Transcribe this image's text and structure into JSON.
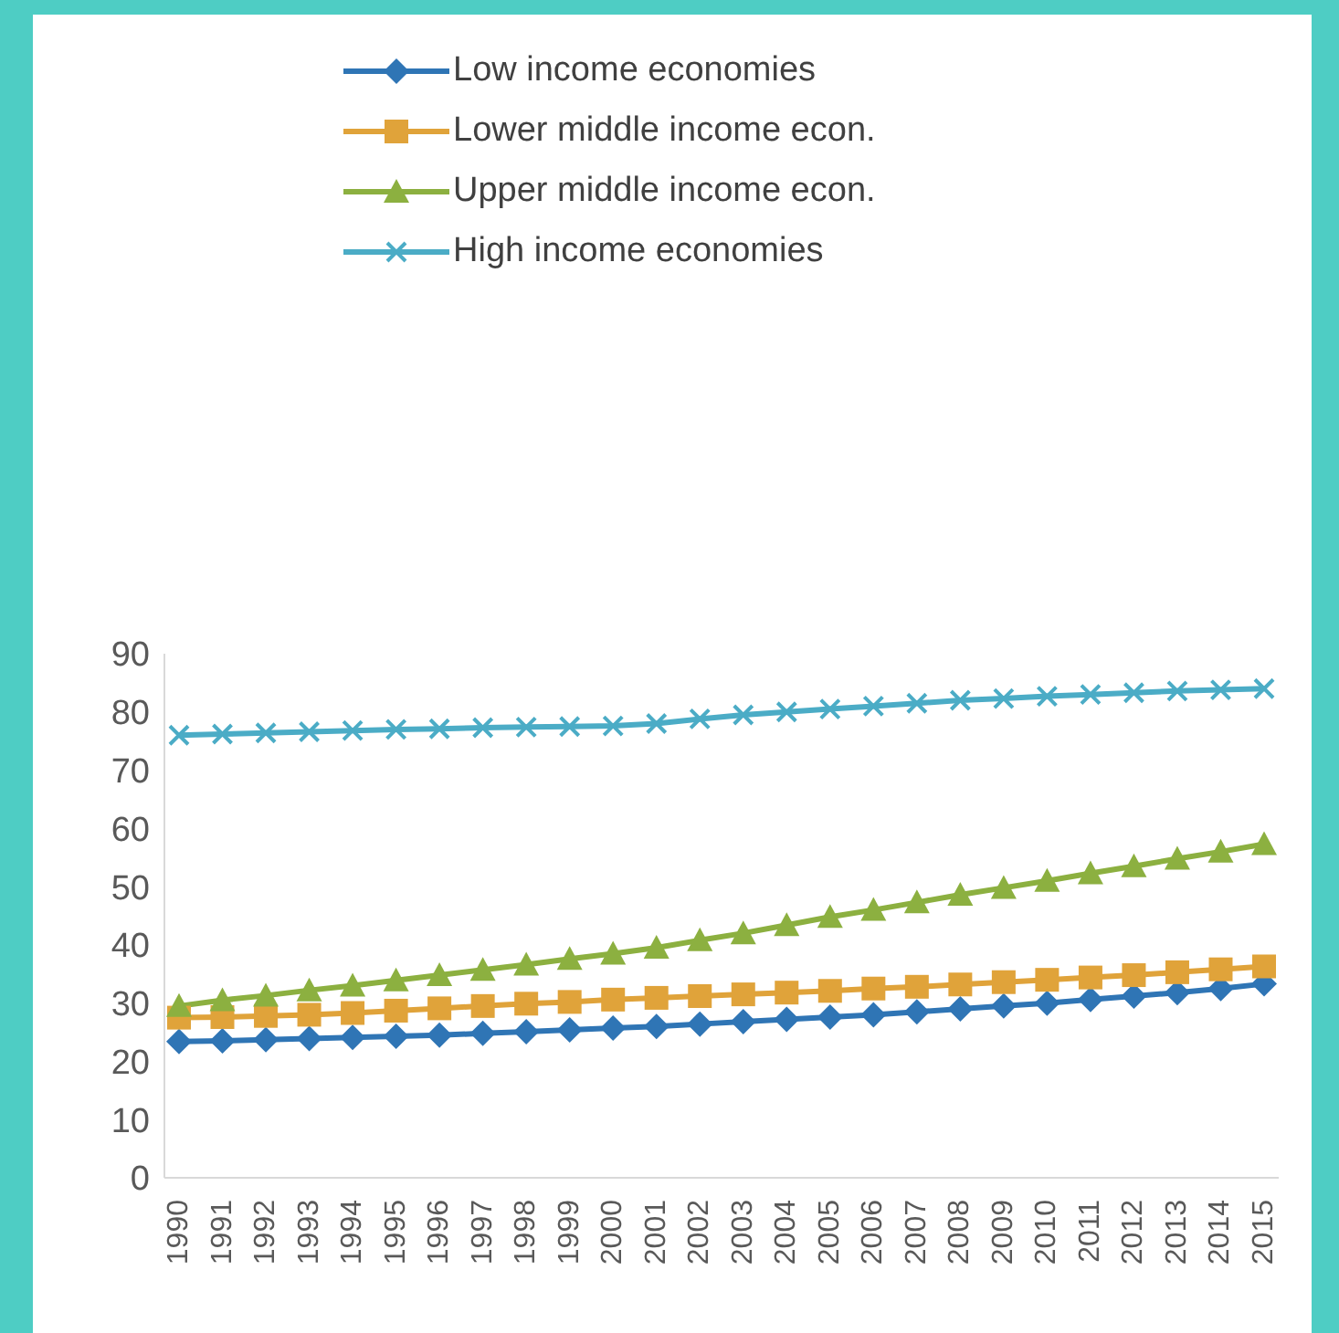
{
  "chart_data": {
    "type": "line",
    "categories": [
      "1990",
      "1991",
      "1992",
      "1993",
      "1994",
      "1995",
      "1996",
      "1997",
      "1998",
      "1999",
      "2000",
      "2001",
      "2002",
      "2003",
      "2004",
      "2005",
      "2006",
      "2007",
      "2008",
      "2009",
      "2010",
      "2011",
      "2012",
      "2013",
      "2014",
      "2015"
    ],
    "series": [
      {
        "name": "Low income economies",
        "color": "#2f75b5",
        "marker": "diamond",
        "values": [
          23.4,
          23.5,
          23.7,
          23.9,
          24.1,
          24.3,
          24.5,
          24.8,
          25.1,
          25.4,
          25.7,
          26,
          26.4,
          26.8,
          27.2,
          27.6,
          28,
          28.5,
          29,
          29.5,
          30,
          30.6,
          31.2,
          31.8,
          32.5,
          33.3
        ]
      },
      {
        "name": "Lower middle income econ.",
        "color": "#e0a33a",
        "marker": "square",
        "values": [
          27.5,
          27.6,
          27.8,
          28,
          28.3,
          28.7,
          29.1,
          29.5,
          29.9,
          30.2,
          30.6,
          30.9,
          31.2,
          31.5,
          31.8,
          32.1,
          32.5,
          32.8,
          33.2,
          33.6,
          34,
          34.4,
          34.8,
          35.3,
          35.8,
          36.3
        ]
      },
      {
        "name": "Upper middle income econ.",
        "color": "#8cb040",
        "marker": "triangle",
        "values": [
          29.5,
          30.5,
          31.3,
          32.2,
          33,
          33.9,
          34.8,
          35.7,
          36.6,
          37.6,
          38.5,
          39.5,
          40.8,
          42,
          43.4,
          44.8,
          46,
          47.3,
          48.6,
          49.8,
          51,
          52.3,
          53.5,
          54.8,
          56,
          57.3
        ]
      },
      {
        "name": "High income economies",
        "color": "#4bacc6",
        "marker": "cross",
        "values": [
          76,
          76.2,
          76.4,
          76.6,
          76.8,
          77,
          77.1,
          77.3,
          77.4,
          77.5,
          77.6,
          78,
          78.8,
          79.5,
          80,
          80.5,
          81,
          81.5,
          82,
          82.3,
          82.7,
          83,
          83.3,
          83.6,
          83.8,
          84
        ]
      }
    ],
    "ylim": [
      0,
      90
    ],
    "yticks": [
      0,
      10,
      20,
      30,
      40,
      50,
      60,
      70,
      80,
      90
    ],
    "grid": false,
    "legend": "top",
    "line_style": "solid"
  }
}
